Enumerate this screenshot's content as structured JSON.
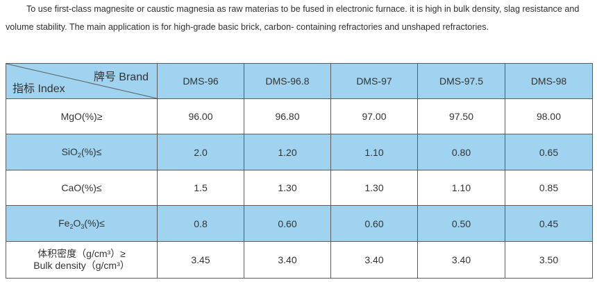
{
  "intro": "To use first-class magnesite or caustic magnesia as raw materias to be fused in electronic furnace. it is high in bulk density, slag resistance and volume stability. The main application is for high-grade basic brick, carbon- containing refractories and unshaped refractories.",
  "table": {
    "corner_brand": "牌号 Brand",
    "corner_index": "指标 Index",
    "brands": [
      "DMS-96",
      "DMS-96.8",
      "DMS-97",
      "DMS-97.5",
      "DMS-98"
    ],
    "rows": [
      {
        "label": "MgO(%)≥",
        "values": [
          "96.00",
          "96.80",
          "97.00",
          "97.50",
          "98.00"
        ]
      },
      {
        "label_pre": "SiO",
        "label_sub1": "2",
        "label_post": "(%)≤",
        "values": [
          "2.0",
          "1.20",
          "1.10",
          "0.80",
          "0.65"
        ]
      },
      {
        "label": "CaO(%)≤",
        "values": [
          "1.5",
          "1.30",
          "1.30",
          "1.10",
          "0.85"
        ]
      },
      {
        "label_pre": "Fe",
        "label_sub1": "2",
        "label_mid": "O",
        "label_sub2": "3",
        "label_post": "(%)≤",
        "values": [
          "0.8",
          "0.60",
          "0.60",
          "0.50",
          "0.45"
        ]
      },
      {
        "label_line1": "体积密度（g/cm³）≥",
        "label_line2": "Bulk density（g/cm³）",
        "values": [
          "3.45",
          "3.40",
          "3.40",
          "3.40",
          "3.50"
        ]
      }
    ]
  }
}
